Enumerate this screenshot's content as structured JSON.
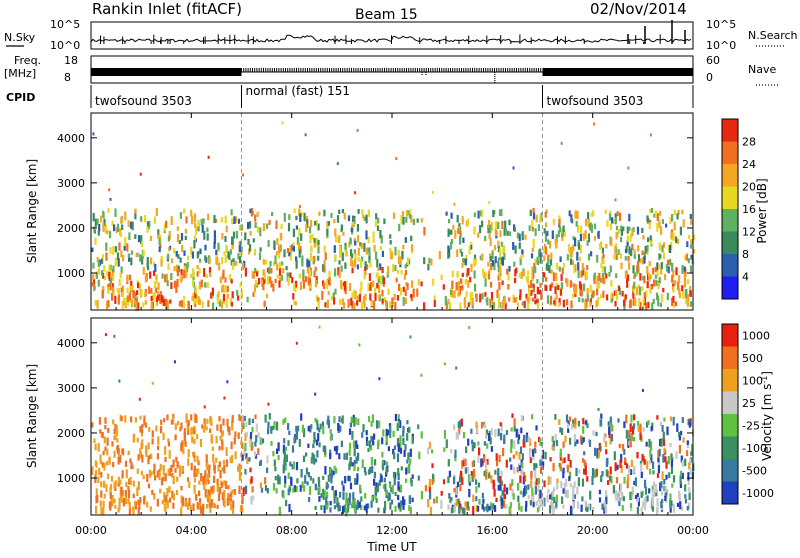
{
  "header": {
    "site": "Rankin Inlet (fitACF)",
    "beam": "Beam 15",
    "date": "02/Nov/2014"
  },
  "noise_panel": {
    "left_label": "N.Sky",
    "right_label": "N.Search",
    "left_ticks": [
      "10^5",
      "10^0"
    ],
    "right_ticks": [
      "10^5",
      "10^0"
    ]
  },
  "freq_panel": {
    "left_label_1": "Freq.",
    "left_label_2": "[MHz]",
    "right_label": "Nave",
    "left_ticks": [
      "18",
      "8"
    ],
    "right_ticks": [
      "60",
      "0"
    ]
  },
  "cpid_panel": {
    "label": "CPID",
    "segments": [
      {
        "start_h": 0,
        "end_h": 6,
        "label": "twofsound 3503"
      },
      {
        "start_h": 6,
        "end_h": 18,
        "label": "normal (fast) 151"
      },
      {
        "start_h": 18,
        "end_h": 24,
        "label": "twofsound 3503"
      }
    ]
  },
  "x_axis": {
    "label": "Time UT",
    "ticks": [
      "00:00",
      "04:00",
      "08:00",
      "12:00",
      "16:00",
      "20:00",
      "00:00"
    ]
  },
  "chart_data": [
    {
      "type": "heatmap",
      "title": "",
      "ylabel": "Slant Range [km]",
      "xlabel": "Time UT",
      "xlim_hours": [
        0,
        24
      ],
      "ylim": [
        180,
        4550
      ],
      "yticks": [
        1000,
        2000,
        3000,
        4000
      ],
      "colorbar_label": "Power [dB]",
      "colorbar_ticks": [
        "4",
        "8",
        "12",
        "16",
        "20",
        "24",
        "28"
      ],
      "colorbar_colors": [
        "#1e1ef0",
        "#2a5fb0",
        "#3b8a5a",
        "#5fb060",
        "#e8d820",
        "#f5a623",
        "#f07020",
        "#e82810"
      ],
      "dominant_range_km": [
        300,
        2400
      ]
    },
    {
      "type": "heatmap",
      "title": "",
      "ylabel": "Slant Range [km]",
      "xlabel": "Time UT",
      "xlim_hours": [
        0,
        24
      ],
      "ylim": [
        180,
        4550
      ],
      "yticks": [
        1000,
        2000,
        3000,
        4000
      ],
      "colorbar_label": "Velocity [m s^-1]",
      "colorbar_ticks": [
        "1000",
        "500",
        "100",
        "25",
        "-25",
        "-100",
        "-500",
        "-1000"
      ],
      "colorbar_colors": [
        "#2040c0",
        "#3a7aa0",
        "#3a9060",
        "#60c040",
        "#c8c8c8",
        "#f0a020",
        "#f07020",
        "#e82010"
      ],
      "dominant_range_km": [
        300,
        2400
      ]
    }
  ]
}
